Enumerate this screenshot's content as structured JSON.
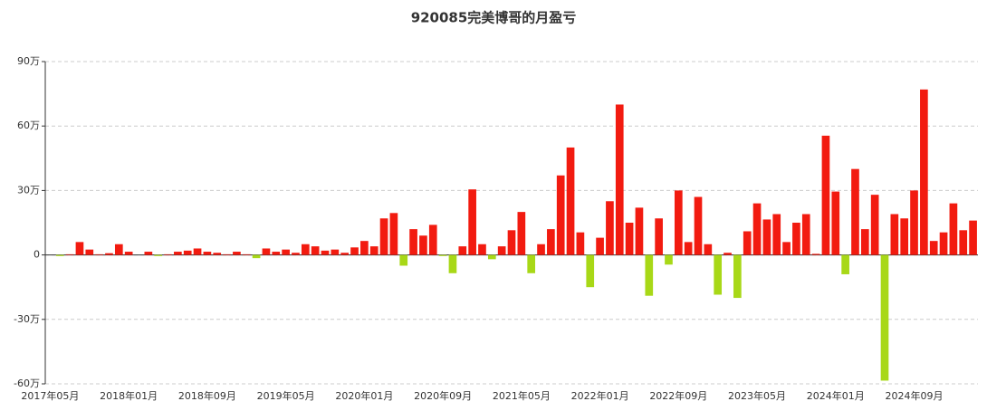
{
  "chart_data": {
    "type": "bar",
    "title": "920085完美博哥的月盈亏",
    "categories": [
      "2017年05月",
      null,
      null,
      null,
      null,
      null,
      null,
      null,
      "2018年01月",
      null,
      null,
      null,
      null,
      null,
      null,
      null,
      "2018年09月",
      null,
      null,
      null,
      null,
      null,
      null,
      null,
      "2019年05月",
      null,
      null,
      null,
      null,
      null,
      null,
      null,
      "2020年01月",
      null,
      null,
      null,
      null,
      null,
      null,
      null,
      "2020年09月",
      null,
      null,
      null,
      null,
      null,
      null,
      null,
      "2021年05月",
      null,
      null,
      null,
      null,
      null,
      null,
      null,
      "2022年01月",
      null,
      null,
      null,
      null,
      null,
      null,
      null,
      "2022年09月",
      null,
      null,
      null,
      null,
      null,
      null,
      null,
      "2023年05月",
      null,
      null,
      null,
      null,
      null,
      null,
      null,
      "2024年01月",
      null,
      null,
      null,
      null,
      null,
      null,
      null,
      "2024年09月",
      null,
      null,
      null,
      null,
      null,
      null
    ],
    "values": [
      0,
      -0.5,
      0.3,
      6,
      2.5,
      0.3,
      0.8,
      5,
      1.5,
      0,
      1.5,
      -0.5,
      0.3,
      1.5,
      2,
      3,
      1.5,
      1,
      0.3,
      1.5,
      0.3,
      -1.5,
      3,
      1.5,
      2.5,
      1,
      5,
      4,
      2,
      2.5,
      1,
      3.5,
      6.5,
      4,
      17,
      19.5,
      -5,
      12,
      9,
      14,
      -0.5,
      -8.5,
      4,
      30.5,
      5,
      -2,
      4,
      11.5,
      20,
      -8.5,
      5,
      12,
      37,
      50,
      10.5,
      -15,
      8,
      25,
      70,
      15,
      22,
      -19,
      17,
      -4.5,
      30,
      6,
      27,
      5,
      -18.5,
      1,
      -20,
      11,
      24,
      16.5,
      19,
      6,
      15,
      19,
      0.5,
      55.5,
      29.5,
      -9,
      40,
      12,
      28,
      -58.5,
      19,
      17,
      30,
      77,
      6.5,
      10.5,
      24,
      11.5,
      16
    ],
    "color_positive": "#f21b10",
    "color_negative": "#a8d817",
    "ylim": [
      -60,
      90
    ],
    "yticks": [
      {
        "value": -60,
        "label": "-60万"
      },
      {
        "value": -30,
        "label": "-30万"
      },
      0,
      {
        "value": 30,
        "label": "30万"
      },
      {
        "value": 60,
        "label": "60万"
      },
      {
        "value": 90,
        "label": "90万"
      }
    ],
    "grid": true
  }
}
